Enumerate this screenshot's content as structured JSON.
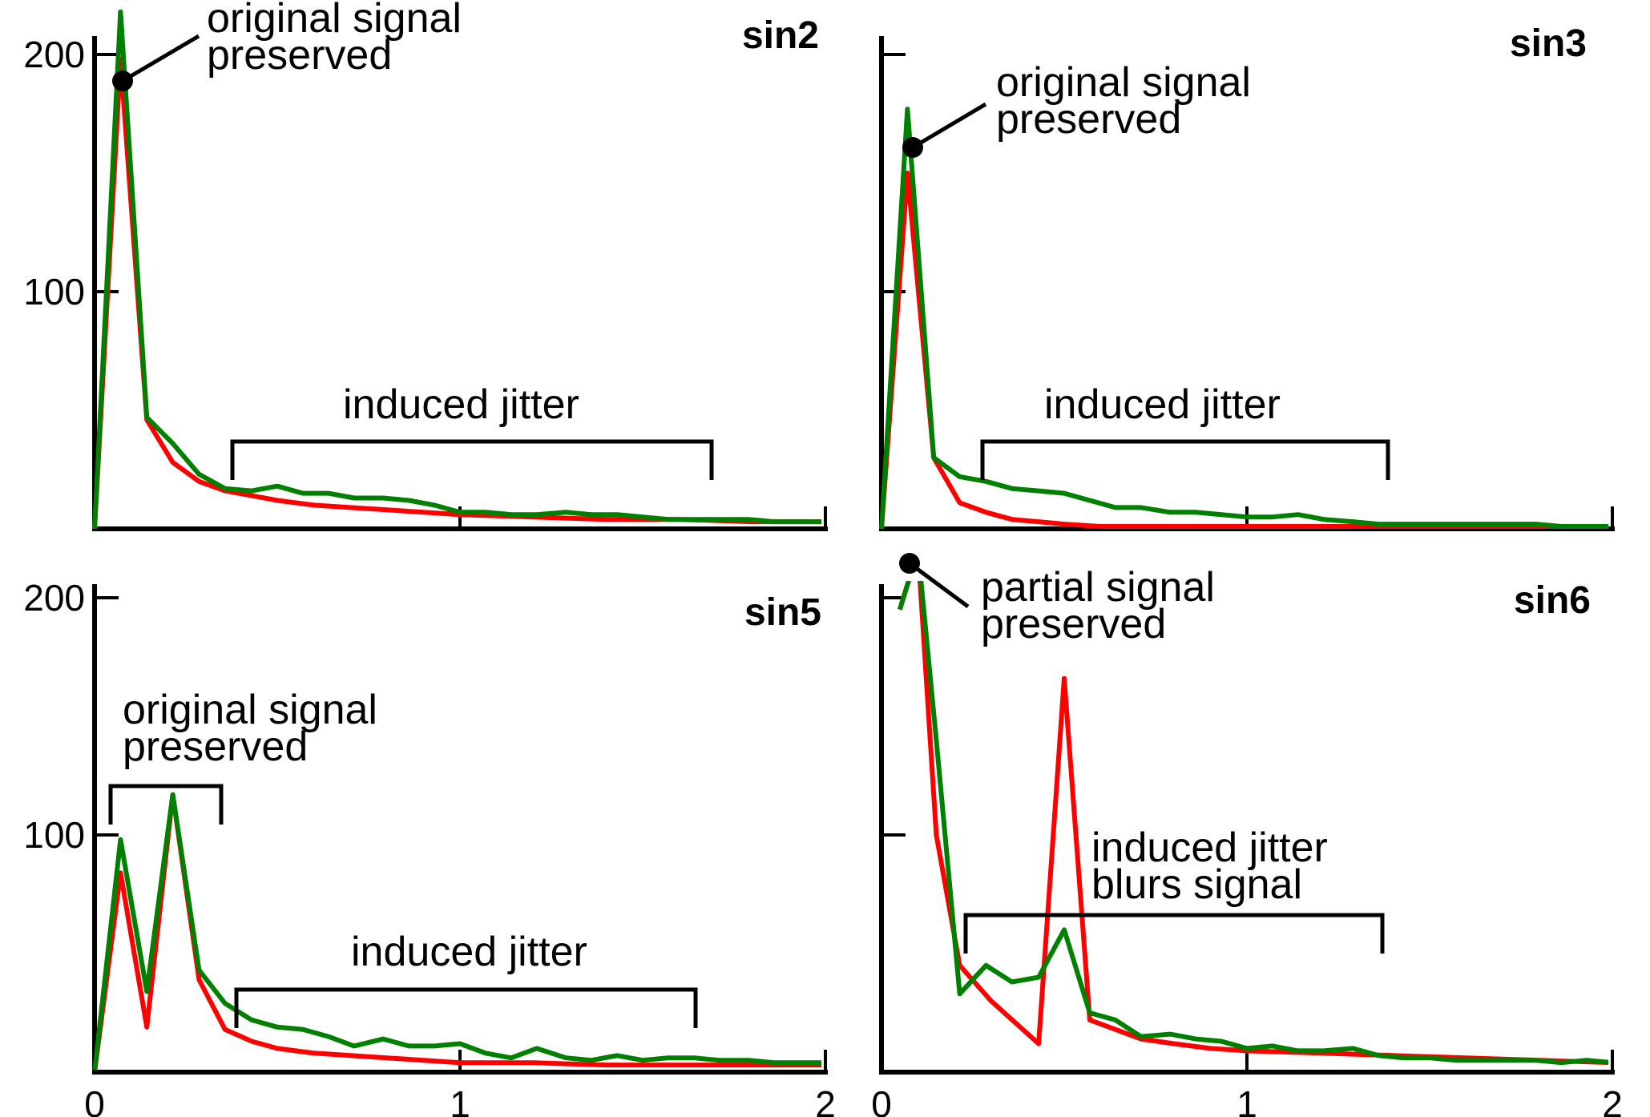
{
  "chart_data": [
    {
      "type": "line",
      "title": "sin2",
      "xlim": [
        0,
        2
      ],
      "ylim": [
        0,
        200
      ],
      "x_ticks": [
        0,
        1,
        2
      ],
      "x_tick_labels": [
        "",
        "",
        ""
      ],
      "y_ticks": [
        100,
        200
      ],
      "y_tick_labels": [
        "100",
        "200"
      ],
      "series": [
        {
          "color": "#ff0000",
          "x": [
            0,
            0.071,
            0.143,
            0.214,
            0.286,
            0.357,
            0.43,
            0.5,
            0.6,
            0.7,
            0.8,
            0.9,
            1.0,
            1.2,
            1.4,
            1.6,
            1.8,
            2.0
          ],
          "y": [
            0,
            198,
            46,
            28,
            20,
            16,
            14,
            12,
            10,
            9,
            8,
            7,
            6,
            5,
            4,
            4,
            3,
            3
          ]
        },
        {
          "color": "#008000",
          "x": [
            0,
            0.071,
            0.143,
            0.214,
            0.286,
            0.357,
            0.43,
            0.5,
            0.57,
            0.64,
            0.71,
            0.79,
            0.86,
            0.93,
            1.0,
            1.07,
            1.14,
            1.21,
            1.29,
            1.36,
            1.43,
            1.5,
            1.57,
            1.64,
            1.71,
            1.79,
            1.86,
            1.93,
            2.0
          ],
          "y": [
            0,
            218,
            47,
            36,
            23,
            17,
            16,
            18,
            15,
            15,
            13,
            13,
            12,
            10,
            7,
            7,
            6,
            6,
            7,
            6,
            6,
            5,
            4,
            4,
            4,
            4,
            3,
            3,
            3
          ]
        }
      ]
    },
    {
      "type": "line",
      "title": "sin3",
      "xlim": [
        0,
        2
      ],
      "ylim": [
        0,
        200
      ],
      "x_ticks": [
        0,
        1,
        2
      ],
      "x_tick_labels": [
        "",
        "",
        ""
      ],
      "y_ticks": [
        100,
        200
      ],
      "y_tick_labels": [
        "",
        ""
      ],
      "series": [
        {
          "color": "#ff0000",
          "x": [
            0,
            0.071,
            0.143,
            0.214,
            0.286,
            0.357,
            0.43,
            0.5,
            0.6,
            0.8,
            1.0,
            1.2,
            1.4,
            1.6,
            1.8,
            2.0
          ],
          "y": [
            0,
            150,
            30,
            11,
            7,
            4,
            3,
            2,
            1,
            1,
            1,
            1,
            1,
            1,
            0,
            0
          ]
        },
        {
          "color": "#008000",
          "x": [
            0,
            0.071,
            0.143,
            0.214,
            0.286,
            0.357,
            0.43,
            0.5,
            0.57,
            0.64,
            0.71,
            0.79,
            0.86,
            0.93,
            1.0,
            1.07,
            1.14,
            1.21,
            1.29,
            1.36,
            1.43,
            1.5,
            1.57,
            1.64,
            1.71,
            1.79,
            1.86,
            1.93,
            2.0
          ],
          "y": [
            0,
            177,
            30,
            22,
            20,
            17,
            16,
            15,
            12,
            9,
            9,
            7,
            7,
            6,
            5,
            5,
            6,
            4,
            3,
            2,
            2,
            2,
            2,
            2,
            2,
            2,
            1,
            1,
            1
          ]
        }
      ]
    },
    {
      "type": "line",
      "title": "sin5",
      "xlim": [
        0,
        2
      ],
      "ylim": [
        0,
        200
      ],
      "x_ticks": [
        0,
        1,
        2
      ],
      "x_tick_labels": [
        "0",
        "1",
        "2"
      ],
      "y_ticks": [
        100,
        200
      ],
      "y_tick_labels": [
        "100",
        "200"
      ],
      "series": [
        {
          "color": "#ff0000",
          "x": [
            0,
            0.071,
            0.143,
            0.214,
            0.286,
            0.357,
            0.43,
            0.5,
            0.6,
            0.7,
            0.8,
            0.9,
            1.0,
            1.2,
            1.4,
            1.6,
            1.8,
            2.0
          ],
          "y": [
            0,
            84,
            19,
            117,
            39,
            18,
            13,
            10,
            8,
            7,
            6,
            5,
            4,
            4,
            3,
            3,
            3,
            3
          ]
        },
        {
          "color": "#008000",
          "x": [
            0,
            0.071,
            0.143,
            0.214,
            0.286,
            0.357,
            0.43,
            0.5,
            0.57,
            0.64,
            0.71,
            0.79,
            0.86,
            0.93,
            1.0,
            1.07,
            1.14,
            1.21,
            1.29,
            1.36,
            1.43,
            1.5,
            1.57,
            1.64,
            1.71,
            1.79,
            1.86,
            1.93,
            2.0
          ],
          "y": [
            0,
            98,
            34,
            117,
            43,
            29,
            22,
            19,
            18,
            15,
            11,
            14,
            11,
            11,
            12,
            8,
            6,
            10,
            6,
            5,
            7,
            5,
            6,
            6,
            5,
            5,
            4,
            4,
            4
          ]
        }
      ]
    },
    {
      "type": "line",
      "title": "sin6",
      "xlim": [
        0,
        2
      ],
      "ylim": [
        0,
        200
      ],
      "x_ticks": [
        0,
        1,
        2
      ],
      "x_tick_labels": [
        "0",
        "1",
        "2"
      ],
      "y_ticks": [
        100,
        200
      ],
      "y_tick_labels": [
        "",
        ""
      ],
      "series": [
        {
          "color": "#ff0000",
          "x": [
            0.05,
            0.1,
            0.15,
            0.214,
            0.3,
            0.43,
            0.5,
            0.57,
            0.64,
            0.71,
            0.8,
            0.9,
            1.0,
            1.2,
            1.4,
            1.6,
            1.8,
            2.0
          ],
          "y": [
            195,
            220,
            100,
            45,
            30,
            12,
            166,
            22,
            18,
            14,
            12,
            10,
            9,
            8,
            7,
            6,
            5,
            4
          ]
        },
        {
          "color": "#008000",
          "x": [
            0.05,
            0.1,
            0.15,
            0.214,
            0.286,
            0.357,
            0.43,
            0.5,
            0.57,
            0.64,
            0.71,
            0.79,
            0.86,
            0.93,
            1.0,
            1.07,
            1.14,
            1.21,
            1.29,
            1.36,
            1.43,
            1.5,
            1.57,
            1.64,
            1.71,
            1.79,
            1.86,
            1.93,
            2.0
          ],
          "y": [
            195,
            220,
            140,
            33,
            45,
            38,
            40,
            60,
            25,
            22,
            15,
            16,
            14,
            13,
            10,
            11,
            9,
            9,
            10,
            7,
            6,
            6,
            5,
            5,
            5,
            5,
            4,
            5,
            4
          ]
        }
      ]
    }
  ],
  "annotations": [
    {
      "panel": 0,
      "kind": "callout",
      "lines": [
        "original signal",
        "preserved"
      ]
    },
    {
      "panel": 0,
      "kind": "bracket",
      "lines": [
        "induced jitter"
      ]
    },
    {
      "panel": 1,
      "kind": "callout",
      "lines": [
        "original signal",
        "preserved"
      ]
    },
    {
      "panel": 1,
      "kind": "bracket",
      "lines": [
        "induced jitter"
      ]
    },
    {
      "panel": 2,
      "kind": "bracket",
      "lines": [
        "original signal",
        "preserved"
      ]
    },
    {
      "panel": 2,
      "kind": "bracket",
      "lines": [
        "induced jitter"
      ]
    },
    {
      "panel": 3,
      "kind": "callout",
      "lines": [
        "partial signal",
        "preserved"
      ]
    },
    {
      "panel": 3,
      "kind": "bracket",
      "lines": [
        "induced jitter",
        "blurs signal"
      ]
    }
  ]
}
